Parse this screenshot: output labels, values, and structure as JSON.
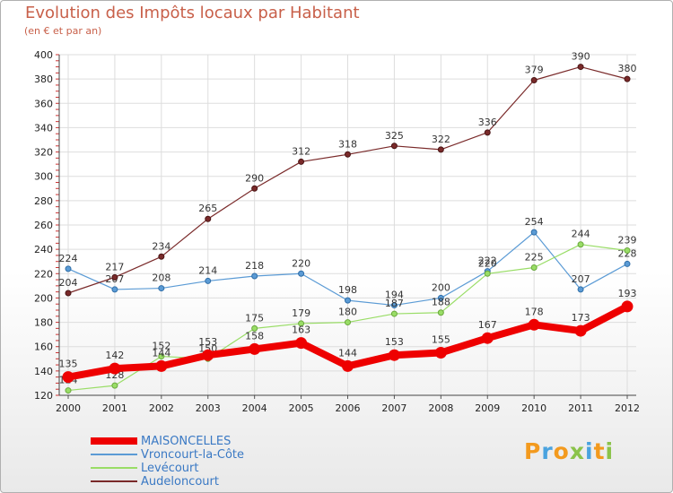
{
  "header": {
    "title": "Evolution des Impôts locaux par Habitant",
    "subtitle": "(en € et par an)"
  },
  "logo": {
    "text": "Proxiti",
    "colors": [
      "#f39a1e",
      "#4aa3df",
      "#f39a1e",
      "#8bc34a",
      "#4aa3df",
      "#f39a1e",
      "#8bc34a"
    ]
  },
  "chart_data": {
    "type": "line",
    "title": "Evolution des Impôts locaux par Habitant",
    "subtitle": "(en € et par an)",
    "xlabel": "",
    "ylabel": "",
    "x": [
      "2000",
      "2001",
      "2002",
      "2003",
      "2004",
      "2005",
      "2006",
      "2007",
      "2008",
      "2009",
      "2010",
      "2011",
      "2012"
    ],
    "ylim": [
      120,
      400
    ],
    "yticks": [
      "120",
      "140",
      "160",
      "180",
      "200",
      "220",
      "240",
      "260",
      "280",
      "300",
      "320",
      "340",
      "360",
      "380",
      "400"
    ],
    "grid": true,
    "legend_position": "bottom-left",
    "series": [
      {
        "name": "MAISONCELLES",
        "color": "#ee0000",
        "lineWidth": 8,
        "marker": "#ee0000",
        "markerStroke": "#ee0000",
        "values": [
          135,
          142,
          144,
          153,
          158,
          163,
          144,
          153,
          155,
          167,
          178,
          173,
          193
        ],
        "labels": [
          "135",
          "142",
          "144",
          "153",
          "158",
          "163",
          "144",
          "153",
          "155",
          "167",
          "178",
          "173",
          "193"
        ]
      },
      {
        "name": "Vroncourt-la-Côte",
        "color": "#5b9bd5",
        "lineWidth": 1.2,
        "marker": "#5b9bd5",
        "markerStroke": "#2f6ea8",
        "values": [
          224,
          207,
          208,
          214,
          218,
          220,
          198,
          194,
          200,
          222,
          254,
          207,
          228
        ],
        "labels": [
          "224",
          "207",
          "208",
          "214",
          "218",
          "220",
          "198",
          "194",
          "200",
          "222",
          "254",
          "207",
          "228"
        ]
      },
      {
        "name": "Levécourt",
        "color": "#99dd66",
        "lineWidth": 1.2,
        "marker": "#99dd66",
        "markerStroke": "#6aa83d",
        "values": [
          124,
          128,
          152,
          150,
          175,
          179,
          180,
          187,
          188,
          220,
          225,
          244,
          239
        ],
        "labels": [
          "124",
          "128",
          "152",
          "150",
          "175",
          "179",
          "180",
          "187",
          "188",
          "220",
          "225",
          "244",
          "239"
        ]
      },
      {
        "name": "Audeloncourt",
        "color": "#7a2a2a",
        "lineWidth": 1.2,
        "marker": "#7a2a2a",
        "markerStroke": "#4a1515",
        "values": [
          204,
          217,
          234,
          265,
          290,
          312,
          318,
          325,
          322,
          336,
          379,
          390,
          380
        ],
        "labels": [
          "204",
          "217",
          "234",
          "265",
          "290",
          "312",
          "318",
          "325",
          "322",
          "336",
          "379",
          "390",
          "380"
        ]
      }
    ]
  }
}
